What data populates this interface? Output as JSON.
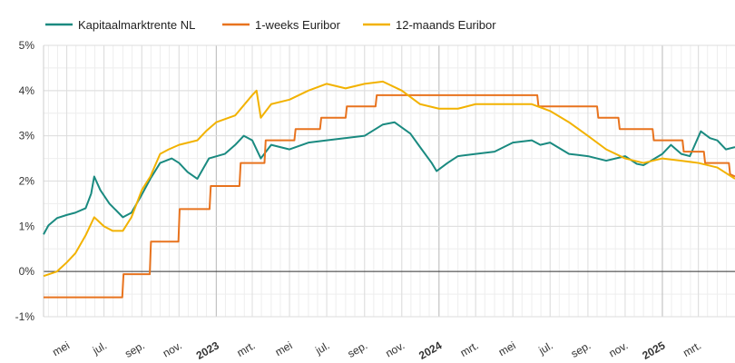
{
  "chart_data": {
    "type": "line",
    "x_range": [
      "2022-03-24",
      "2025-04-30"
    ],
    "ylim": [
      -1,
      5
    ],
    "y_ticks": [
      {
        "value": 5,
        "label": "5%"
      },
      {
        "value": 4,
        "label": "4%"
      },
      {
        "value": 3,
        "label": "3%"
      },
      {
        "value": 2,
        "label": "2%"
      },
      {
        "value": 1,
        "label": "1%"
      },
      {
        "value": 0,
        "label": "0%"
      },
      {
        "value": -1,
        "label": "-1%"
      }
    ],
    "x_ticks": [
      {
        "date": "2022-05-01",
        "label": "mei",
        "major": false
      },
      {
        "date": "2022-07-01",
        "label": "jul.",
        "major": false
      },
      {
        "date": "2022-09-01",
        "label": "sep.",
        "major": false
      },
      {
        "date": "2022-11-01",
        "label": "nov.",
        "major": false
      },
      {
        "date": "2023-01-01",
        "label": "2023",
        "major": true
      },
      {
        "date": "2023-03-01",
        "label": "mrt.",
        "major": false
      },
      {
        "date": "2023-05-01",
        "label": "mei",
        "major": false
      },
      {
        "date": "2023-07-01",
        "label": "jul.",
        "major": false
      },
      {
        "date": "2023-09-01",
        "label": "sep.",
        "major": false
      },
      {
        "date": "2023-11-01",
        "label": "nov.",
        "major": false
      },
      {
        "date": "2024-01-01",
        "label": "2024",
        "major": true
      },
      {
        "date": "2024-03-01",
        "label": "mrt.",
        "major": false
      },
      {
        "date": "2024-05-01",
        "label": "mei",
        "major": false
      },
      {
        "date": "2024-07-01",
        "label": "jul.",
        "major": false
      },
      {
        "date": "2024-09-01",
        "label": "sep.",
        "major": false
      },
      {
        "date": "2024-11-01",
        "label": "nov.",
        "major": false
      },
      {
        "date": "2025-01-01",
        "label": "2025",
        "major": true
      },
      {
        "date": "2025-03-01",
        "label": "mrt.",
        "major": false
      }
    ],
    "grid": true,
    "legend_position": "top-left",
    "series": [
      {
        "name": "Kapitaalmarktrente NL",
        "color": "#1a8a80",
        "points": [
          [
            "2022-03-24",
            0.82
          ],
          [
            "2022-04-01",
            1.02
          ],
          [
            "2022-04-15",
            1.18
          ],
          [
            "2022-05-01",
            1.25
          ],
          [
            "2022-05-15",
            1.3
          ],
          [
            "2022-06-01",
            1.4
          ],
          [
            "2022-06-10",
            1.72
          ],
          [
            "2022-06-15",
            2.1
          ],
          [
            "2022-06-25",
            1.8
          ],
          [
            "2022-07-10",
            1.5
          ],
          [
            "2022-08-01",
            1.2
          ],
          [
            "2022-08-15",
            1.3
          ],
          [
            "2022-09-01",
            1.7
          ],
          [
            "2022-09-15",
            2.05
          ],
          [
            "2022-10-01",
            2.4
          ],
          [
            "2022-10-20",
            2.5
          ],
          [
            "2022-11-01",
            2.4
          ],
          [
            "2022-11-15",
            2.2
          ],
          [
            "2022-12-01",
            2.05
          ],
          [
            "2022-12-20",
            2.5
          ],
          [
            "2023-01-15",
            2.6
          ],
          [
            "2023-02-01",
            2.8
          ],
          [
            "2023-02-15",
            3.0
          ],
          [
            "2023-03-01",
            2.9
          ],
          [
            "2023-03-15",
            2.5
          ],
          [
            "2023-04-01",
            2.8
          ],
          [
            "2023-05-01",
            2.7
          ],
          [
            "2023-06-01",
            2.85
          ],
          [
            "2023-07-01",
            2.9
          ],
          [
            "2023-08-01",
            2.95
          ],
          [
            "2023-09-01",
            3.0
          ],
          [
            "2023-10-01",
            3.25
          ],
          [
            "2023-10-20",
            3.3
          ],
          [
            "2023-11-15",
            3.05
          ],
          [
            "2023-12-01",
            2.75
          ],
          [
            "2023-12-20",
            2.4
          ],
          [
            "2023-12-28",
            2.22
          ],
          [
            "2024-01-15",
            2.4
          ],
          [
            "2024-02-01",
            2.55
          ],
          [
            "2024-03-01",
            2.6
          ],
          [
            "2024-04-01",
            2.65
          ],
          [
            "2024-05-01",
            2.85
          ],
          [
            "2024-06-01",
            2.9
          ],
          [
            "2024-06-15",
            2.8
          ],
          [
            "2024-07-01",
            2.85
          ],
          [
            "2024-08-01",
            2.6
          ],
          [
            "2024-09-01",
            2.55
          ],
          [
            "2024-10-01",
            2.45
          ],
          [
            "2024-11-01",
            2.55
          ],
          [
            "2024-11-20",
            2.38
          ],
          [
            "2024-12-01",
            2.35
          ],
          [
            "2025-01-01",
            2.6
          ],
          [
            "2025-01-15",
            2.8
          ],
          [
            "2025-02-01",
            2.6
          ],
          [
            "2025-02-15",
            2.55
          ],
          [
            "2025-03-05",
            3.1
          ],
          [
            "2025-03-20",
            2.95
          ],
          [
            "2025-04-01",
            2.9
          ],
          [
            "2025-04-15",
            2.7
          ],
          [
            "2025-04-30",
            2.75
          ]
        ]
      },
      {
        "name": "1-weeks Euribor",
        "color": "#e8731e",
        "points": [
          [
            "2022-03-24",
            -0.57
          ],
          [
            "2022-07-31",
            -0.57
          ],
          [
            "2022-08-02",
            -0.06
          ],
          [
            "2022-09-14",
            -0.06
          ],
          [
            "2022-09-16",
            0.66
          ],
          [
            "2022-10-31",
            0.66
          ],
          [
            "2022-11-02",
            1.38
          ],
          [
            "2022-12-21",
            1.38
          ],
          [
            "2022-12-23",
            1.89
          ],
          [
            "2023-02-08",
            1.89
          ],
          [
            "2023-02-10",
            2.4
          ],
          [
            "2023-03-21",
            2.4
          ],
          [
            "2023-03-23",
            2.9
          ],
          [
            "2023-05-09",
            2.9
          ],
          [
            "2023-05-11",
            3.15
          ],
          [
            "2023-06-20",
            3.15
          ],
          [
            "2023-06-22",
            3.4
          ],
          [
            "2023-08-01",
            3.4
          ],
          [
            "2023-08-03",
            3.65
          ],
          [
            "2023-09-19",
            3.65
          ],
          [
            "2023-09-21",
            3.9
          ],
          [
            "2024-06-10",
            3.9
          ],
          [
            "2024-06-12",
            3.65
          ],
          [
            "2024-09-16",
            3.65
          ],
          [
            "2024-09-18",
            3.4
          ],
          [
            "2024-10-21",
            3.4
          ],
          [
            "2024-10-23",
            3.15
          ],
          [
            "2024-12-16",
            3.15
          ],
          [
            "2024-12-18",
            2.9
          ],
          [
            "2025-02-03",
            2.9
          ],
          [
            "2025-02-05",
            2.65
          ],
          [
            "2025-03-10",
            2.65
          ],
          [
            "2025-03-12",
            2.4
          ],
          [
            "2025-04-20",
            2.4
          ],
          [
            "2025-04-22",
            2.15
          ],
          [
            "2025-04-30",
            2.1
          ]
        ]
      },
      {
        "name": "12-maands Euribor",
        "color": "#f2b200",
        "points": [
          [
            "2022-03-24",
            -0.1
          ],
          [
            "2022-04-15",
            0.0
          ],
          [
            "2022-05-01",
            0.2
          ],
          [
            "2022-05-15",
            0.4
          ],
          [
            "2022-06-01",
            0.8
          ],
          [
            "2022-06-15",
            1.2
          ],
          [
            "2022-07-01",
            1.0
          ],
          [
            "2022-07-15",
            0.9
          ],
          [
            "2022-08-01",
            0.9
          ],
          [
            "2022-08-15",
            1.2
          ],
          [
            "2022-09-01",
            1.8
          ],
          [
            "2022-09-15",
            2.1
          ],
          [
            "2022-10-01",
            2.6
          ],
          [
            "2022-10-15",
            2.7
          ],
          [
            "2022-11-01",
            2.8
          ],
          [
            "2022-12-01",
            2.9
          ],
          [
            "2022-12-15",
            3.1
          ],
          [
            "2023-01-01",
            3.3
          ],
          [
            "2023-02-01",
            3.45
          ],
          [
            "2023-03-01",
            3.9
          ],
          [
            "2023-03-08",
            4.0
          ],
          [
            "2023-03-15",
            3.4
          ],
          [
            "2023-04-01",
            3.7
          ],
          [
            "2023-05-01",
            3.8
          ],
          [
            "2023-06-01",
            4.0
          ],
          [
            "2023-07-01",
            4.15
          ],
          [
            "2023-08-01",
            4.05
          ],
          [
            "2023-09-01",
            4.15
          ],
          [
            "2023-10-01",
            4.2
          ],
          [
            "2023-11-01",
            4.0
          ],
          [
            "2023-12-01",
            3.7
          ],
          [
            "2024-01-01",
            3.6
          ],
          [
            "2024-02-01",
            3.6
          ],
          [
            "2024-03-01",
            3.7
          ],
          [
            "2024-04-01",
            3.7
          ],
          [
            "2024-05-01",
            3.7
          ],
          [
            "2024-06-01",
            3.7
          ],
          [
            "2024-07-01",
            3.55
          ],
          [
            "2024-08-01",
            3.3
          ],
          [
            "2024-09-01",
            3.0
          ],
          [
            "2024-10-01",
            2.7
          ],
          [
            "2024-11-01",
            2.5
          ],
          [
            "2024-12-01",
            2.4
          ],
          [
            "2025-01-01",
            2.5
          ],
          [
            "2025-02-01",
            2.45
          ],
          [
            "2025-03-01",
            2.4
          ],
          [
            "2025-04-01",
            2.3
          ],
          [
            "2025-04-30",
            2.05
          ]
        ]
      }
    ]
  }
}
